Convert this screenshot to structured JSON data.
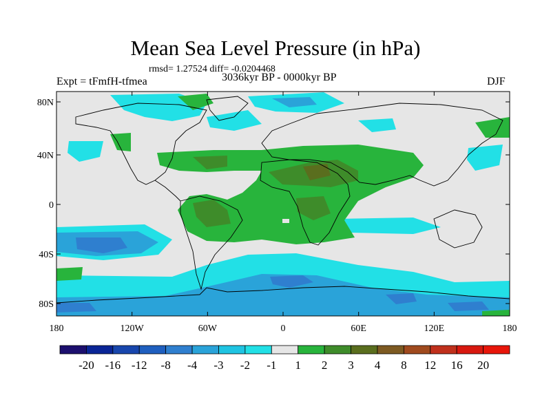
{
  "title": "Mean Sea Level Pressure (in hPa)",
  "stats": "rmsd= 1.27524 diff= -0.0204468",
  "expt": "Expt = tFmfH-tfmea",
  "period": "3036kyr BP - 0000kyr BP",
  "season": "DJF",
  "lat_labels": [
    "80N",
    "40N",
    "0",
    "40S",
    "80S"
  ],
  "lon_labels": [
    "180",
    "120W",
    "60W",
    "0",
    "60E",
    "120E",
    "180"
  ],
  "colorbar": {
    "labels": [
      "-20",
      "-16",
      "-12",
      "-8",
      "-4",
      "-3",
      "-2",
      "-1",
      "1",
      "2",
      "3",
      "4",
      "8",
      "12",
      "16",
      "20"
    ],
    "colors": [
      "#1c0f6e",
      "#0a2596",
      "#1846ad",
      "#1f5fbf",
      "#2f7fcf",
      "#2aa3d9",
      "#1fc4e2",
      "#22e0e6",
      "#e6e6e6",
      "#28b43c",
      "#3e8c2a",
      "#5a6e1e",
      "#7d5a22",
      "#a04a1e",
      "#c0301c",
      "#d8180f",
      "#e8160a"
    ]
  },
  "colors": {
    "ocean_neutral": "#e6e6e6",
    "pos1": "#28b43c",
    "pos2": "#3e8c2a",
    "pos3": "#5a6e1e",
    "neg1": "#22e0e6",
    "neg2": "#1fc4e2",
    "neg3": "#2aa3d9",
    "neg4": "#2f7fcf",
    "neg5": "#1846ad"
  }
}
